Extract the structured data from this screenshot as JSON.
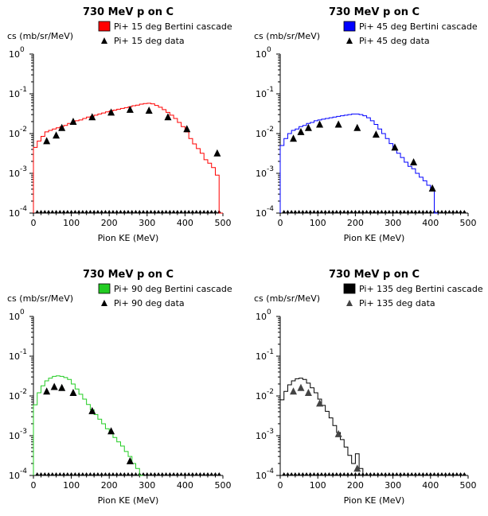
{
  "chart_data": [
    {
      "type": "line",
      "title": "730 MeV p on C",
      "xlabel": "Pion KE (MeV)",
      "ylabel": "cs (mb/sr/MeV)",
      "xlim": [
        0,
        500
      ],
      "ylim": [
        0.0001,
        1
      ],
      "yscale": "log",
      "xticks": [
        "0",
        "100",
        "200",
        "300",
        "400",
        "500"
      ],
      "yticks": [
        "10^-4",
        "10^-3",
        "10^-2",
        "10^-1",
        "10^0"
      ],
      "legend_position": "top-right",
      "series": [
        {
          "name": "Pi+ 15 deg Bertini cascade",
          "color": "#ff0000",
          "style": "step",
          "x": [
            0,
            10,
            20,
            30,
            40,
            50,
            60,
            70,
            80,
            90,
            100,
            110,
            120,
            130,
            140,
            150,
            160,
            170,
            180,
            190,
            200,
            210,
            220,
            230,
            240,
            250,
            260,
            270,
            280,
            290,
            300,
            310,
            320,
            330,
            340,
            350,
            360,
            370,
            380,
            390,
            400,
            410,
            420,
            430,
            440,
            450,
            460,
            470,
            480,
            490
          ],
          "y": [
            0.0045,
            0.0065,
            0.0085,
            0.011,
            0.012,
            0.013,
            0.014,
            0.015,
            0.016,
            0.018,
            0.019,
            0.021,
            0.022,
            0.024,
            0.026,
            0.027,
            0.029,
            0.031,
            0.033,
            0.035,
            0.037,
            0.039,
            0.041,
            0.043,
            0.045,
            0.047,
            0.05,
            0.052,
            0.055,
            0.057,
            0.058,
            0.056,
            0.051,
            0.046,
            0.04,
            0.034,
            0.029,
            0.024,
            0.019,
            0.015,
            0.011,
            0.0075,
            0.0055,
            0.0042,
            0.0032,
            0.0022,
            0.0018,
            0.0014,
            0.0009,
            0.0001
          ]
        },
        {
          "name": "Pi+ 15 deg data",
          "color": "#000000",
          "style": "triangle",
          "x": [
            35,
            60,
            75,
            105,
            155,
            205,
            255,
            305,
            355,
            405,
            485
          ],
          "y": [
            0.0065,
            0.009,
            0.014,
            0.02,
            0.026,
            0.034,
            0.04,
            0.038,
            0.026,
            0.013,
            0.0032
          ]
        }
      ]
    },
    {
      "type": "line",
      "title": "730 MeV p on C",
      "xlabel": "Pion KE (MeV)",
      "ylabel": "cs (mb/sr/MeV)",
      "xlim": [
        0,
        500
      ],
      "ylim": [
        0.0001,
        1
      ],
      "yscale": "log",
      "xticks": [
        "0",
        "100",
        "200",
        "300",
        "400",
        "500"
      ],
      "yticks": [
        "10^-4",
        "10^-3",
        "10^-2",
        "10^-1",
        "10^0"
      ],
      "legend_position": "top-right",
      "series": [
        {
          "name": "Pi+ 45 deg Bertini cascade",
          "color": "#0000ff",
          "style": "step",
          "x": [
            0,
            10,
            20,
            30,
            40,
            50,
            60,
            70,
            80,
            90,
            100,
            110,
            120,
            130,
            140,
            150,
            160,
            170,
            180,
            190,
            200,
            210,
            220,
            230,
            240,
            250,
            260,
            270,
            280,
            290,
            300,
            310,
            320,
            330,
            340,
            350,
            360,
            370,
            380,
            390,
            400,
            410
          ],
          "y": [
            0.005,
            0.0075,
            0.01,
            0.012,
            0.013,
            0.015,
            0.016,
            0.018,
            0.019,
            0.021,
            0.022,
            0.023,
            0.024,
            0.025,
            0.026,
            0.027,
            0.028,
            0.029,
            0.03,
            0.031,
            0.031,
            0.03,
            0.028,
            0.025,
            0.021,
            0.017,
            0.013,
            0.01,
            0.0075,
            0.0056,
            0.0042,
            0.0032,
            0.0025,
            0.0019,
            0.0015,
            0.0013,
            0.001,
            0.0008,
            0.00065,
            0.0005,
            0.0004,
            0.0001
          ]
        },
        {
          "name": "Pi+ 45 deg data",
          "color": "#000000",
          "style": "triangle",
          "x": [
            35,
            55,
            75,
            105,
            155,
            205,
            255,
            305,
            355,
            405
          ],
          "y": [
            0.0075,
            0.011,
            0.014,
            0.017,
            0.017,
            0.014,
            0.0095,
            0.0045,
            0.0019,
            0.00042
          ]
        }
      ]
    },
    {
      "type": "line",
      "title": "730 MeV p on C",
      "xlabel": "Pion KE (MeV)",
      "ylabel": "cs (mb/sr/MeV)",
      "xlim": [
        0,
        500
      ],
      "ylim": [
        0.0001,
        1
      ],
      "yscale": "log",
      "xticks": [
        "0",
        "100",
        "200",
        "300",
        "400",
        "500"
      ],
      "yticks": [
        "10^-4",
        "10^-3",
        "10^-2",
        "10^-1",
        "10^0"
      ],
      "legend_position": "top-right",
      "series": [
        {
          "name": "Pi+ 90 deg Bertini cascade",
          "color": "#22cc22",
          "style": "step",
          "x": [
            0,
            10,
            20,
            30,
            40,
            50,
            60,
            70,
            80,
            90,
            100,
            110,
            120,
            130,
            140,
            150,
            160,
            170,
            180,
            190,
            200,
            210,
            220,
            230,
            240,
            250,
            260,
            270,
            280
          ],
          "y": [
            0.006,
            0.012,
            0.018,
            0.024,
            0.028,
            0.031,
            0.032,
            0.031,
            0.029,
            0.026,
            0.02,
            0.015,
            0.011,
            0.0083,
            0.0061,
            0.0045,
            0.0034,
            0.0026,
            0.002,
            0.0015,
            0.0012,
            0.0009,
            0.0007,
            0.00055,
            0.0004,
            0.0003,
            0.0002,
            0.00015,
            0.0001
          ]
        },
        {
          "name": "Pi+ 90 deg data",
          "color": "#000000",
          "style": "triangle",
          "x": [
            35,
            55,
            75,
            105,
            155,
            205,
            255
          ],
          "y": [
            0.013,
            0.017,
            0.016,
            0.012,
            0.0042,
            0.0013,
            0.00023
          ]
        }
      ]
    },
    {
      "type": "line",
      "title": "730 MeV p on C",
      "xlabel": "Pion KE (MeV)",
      "ylabel": "cs (mb/sr/MeV)",
      "xlim": [
        0,
        500
      ],
      "ylim": [
        0.0001,
        1
      ],
      "yscale": "log",
      "xticks": [
        "0",
        "100",
        "200",
        "300",
        "400",
        "500"
      ],
      "yticks": [
        "10^-4",
        "10^-3",
        "10^-2",
        "10^-1",
        "10^0"
      ],
      "legend_position": "top-right",
      "series": [
        {
          "name": "Pi+ 135 deg Bertini cascade",
          "color": "#000000",
          "style": "step",
          "x": [
            0,
            10,
            20,
            30,
            40,
            50,
            60,
            70,
            80,
            90,
            100,
            110,
            120,
            130,
            140,
            150,
            160,
            170,
            180,
            190,
            200,
            210,
            220
          ],
          "y": [
            0.008,
            0.013,
            0.019,
            0.024,
            0.027,
            0.028,
            0.026,
            0.021,
            0.016,
            0.012,
            0.0083,
            0.0058,
            0.0041,
            0.0028,
            0.0018,
            0.0012,
            0.0008,
            0.00052,
            0.00032,
            0.0002,
            0.00035,
            0.00015,
            0.0001
          ]
        },
        {
          "name": "Pi+ 135 deg data",
          "color": "#444444",
          "style": "triangle",
          "x": [
            35,
            55,
            75,
            105,
            155,
            205
          ],
          "y": [
            0.013,
            0.016,
            0.012,
            0.0065,
            0.0011,
            0.00015
          ]
        }
      ]
    }
  ]
}
